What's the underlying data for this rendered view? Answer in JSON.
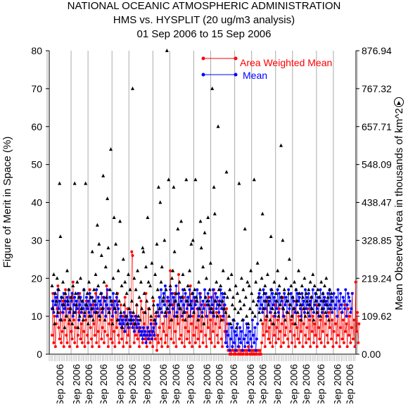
{
  "chart_data": {
    "type": "scatter",
    "title": [
      "NATIONAL OCEANIC ATMOSPHERIC ADMINISTRATION",
      "HMS vs. HYSPLIT (20 ug/m3 analysis)",
      "01 Sep 2006 to 15 Sep 2006"
    ],
    "ylabel_left": "Figure of Merit in Space (%)",
    "ylabel_right": "Mean Observed Area in thousands of km^2",
    "ylim_left": [
      0,
      80
    ],
    "yticks_left": [
      "0",
      "10",
      "20",
      "30",
      "40",
      "50",
      "60",
      "70",
      "80"
    ],
    "yticks_right": [
      "0.00",
      "109.62",
      "219.24",
      "328.85",
      "438.47",
      "548.09",
      "657.71",
      "767.32",
      "876.94"
    ],
    "xtick_label": "Sep 2006",
    "x_label_count": 21,
    "n_points": 360,
    "colors": {
      "awm": "#ff0000",
      "mean": "#0000ff",
      "area": "#000000"
    },
    "legend": {
      "position": "top-right",
      "entries": [
        "Area Weighted Mean",
        "Mean"
      ]
    },
    "triangle_marker": "▲",
    "series": [
      {
        "name": "Area Weighted Mean",
        "color": "#ff0000",
        "values": [
          5,
          16,
          3,
          10,
          2,
          8,
          12,
          18,
          7,
          4,
          11,
          3,
          6,
          14,
          2,
          9,
          17,
          5,
          3,
          12,
          8,
          2,
          15,
          6,
          4,
          19,
          9,
          3,
          7,
          13,
          2,
          5,
          11,
          16,
          4,
          8,
          3,
          12,
          6,
          2,
          9,
          14,
          5,
          3,
          10,
          17,
          7,
          4,
          2,
          13,
          8,
          5,
          16,
          3,
          11,
          6,
          2,
          9,
          12,
          4,
          7,
          15,
          3,
          6,
          10,
          18,
          5,
          2,
          8,
          12,
          4,
          9,
          3,
          14,
          6,
          2,
          11,
          7,
          16,
          5,
          3,
          8,
          13,
          4,
          10,
          2,
          6,
          15,
          9,
          3,
          12,
          5,
          7,
          2,
          11,
          27,
          26,
          8,
          3,
          10,
          5,
          13,
          4,
          7,
          2,
          9,
          14,
          6,
          3,
          11,
          8,
          4,
          16,
          2,
          7,
          12,
          5,
          3,
          9,
          6,
          2,
          14,
          8,
          4,
          10,
          1,
          5,
          3,
          7,
          12,
          4,
          2,
          8,
          6,
          10,
          3,
          5,
          14,
          2,
          11,
          7,
          22,
          4,
          9,
          13,
          3,
          16,
          6,
          2,
          10,
          8,
          21,
          4,
          12,
          5,
          3,
          9,
          15,
          2,
          7,
          11,
          4,
          13,
          6,
          3,
          18,
          8,
          2,
          10,
          5,
          14,
          3,
          7,
          12,
          4,
          9,
          2,
          16,
          6,
          11,
          3,
          8,
          13,
          5,
          2,
          10,
          7,
          15,
          4,
          9,
          3,
          12,
          6,
          17,
          2,
          8,
          11,
          5,
          3,
          14,
          7,
          10,
          4,
          2,
          9,
          13,
          6,
          3,
          12,
          8,
          1,
          1,
          0,
          1,
          0,
          2,
          1,
          0,
          1,
          0,
          1,
          1,
          0,
          2,
          0,
          1,
          0,
          1,
          0,
          1,
          1,
          0,
          1,
          0,
          2,
          1,
          0,
          1,
          0,
          1,
          0,
          1,
          0,
          1,
          0,
          1,
          1,
          0,
          1,
          0,
          3,
          8,
          5,
          12,
          2,
          9,
          6,
          14,
          4,
          7,
          3,
          11,
          8,
          2,
          10,
          5,
          13,
          3,
          7,
          9,
          4,
          12,
          6,
          2,
          8,
          15,
          3,
          10,
          5,
          7,
          11,
          4,
          2,
          13,
          6,
          9,
          3,
          8,
          12,
          5,
          2,
          14,
          7,
          4,
          10,
          3,
          9,
          6,
          13,
          2,
          8,
          11,
          5,
          3,
          7,
          12,
          4,
          9,
          2,
          15,
          6,
          10,
          3,
          8,
          5,
          13,
          2,
          11,
          7,
          4,
          9,
          3,
          12,
          6,
          14,
          2,
          8,
          10,
          5,
          3,
          11,
          7,
          13,
          4,
          9,
          2,
          6,
          12,
          8,
          3,
          10,
          5,
          14,
          2,
          7,
          11,
          4,
          9,
          3,
          13,
          6,
          8,
          2,
          12,
          5,
          10,
          3,
          7,
          16,
          4,
          9,
          2,
          19,
          6,
          11,
          3,
          8
        ]
      },
      {
        "name": "Mean",
        "color": "#0000ff",
        "values": [
          12,
          14,
          11,
          16,
          13,
          15,
          10,
          17,
          12,
          14,
          9,
          15,
          13,
          11,
          16,
          12,
          14,
          10,
          15,
          13,
          17,
          11,
          12,
          14,
          16,
          10,
          13,
          15,
          11,
          14,
          12,
          16,
          9,
          13,
          15,
          11,
          14,
          12,
          17,
          10,
          13,
          15,
          12,
          14,
          11,
          16,
          13,
          10,
          15,
          12,
          14,
          11,
          13,
          17,
          12,
          15,
          10,
          14,
          13,
          16,
          11,
          12,
          15,
          14,
          10,
          13,
          17,
          12,
          11,
          15,
          14,
          13,
          10,
          16,
          12,
          14,
          11,
          15,
          13,
          12,
          9,
          8,
          10,
          7,
          9,
          8,
          11,
          6,
          9,
          10,
          8,
          7,
          9,
          11,
          8,
          10,
          7,
          9,
          6,
          8,
          10,
          7,
          9,
          8,
          6,
          7,
          5,
          6,
          4,
          7,
          5,
          6,
          3,
          5,
          7,
          4,
          6,
          5,
          8,
          4,
          6,
          7,
          5,
          9,
          8,
          11,
          13,
          10,
          15,
          12,
          17,
          11,
          14,
          16,
          13,
          18,
          10,
          12,
          15,
          14,
          11,
          17,
          13,
          16,
          12,
          15,
          10,
          14,
          18,
          11,
          13,
          16,
          12,
          15,
          14,
          10,
          17,
          13,
          11,
          16,
          14,
          12,
          15,
          13,
          17,
          10,
          14,
          12,
          16,
          11,
          15,
          13,
          14,
          17,
          12,
          10,
          16,
          15,
          13,
          11,
          14,
          12,
          17,
          15,
          10,
          13,
          16,
          14,
          12,
          11,
          15,
          13,
          17,
          10,
          14,
          16,
          12,
          15,
          13,
          11,
          14,
          17,
          12,
          16,
          10,
          15,
          13,
          3,
          6,
          2,
          5,
          8,
          1,
          4,
          7,
          2,
          9,
          3,
          6,
          1,
          5,
          8,
          2,
          4,
          7,
          3,
          6,
          1,
          9,
          4,
          2,
          5,
          8,
          3,
          7,
          1,
          6,
          4,
          2,
          9,
          5,
          3,
          7,
          1,
          4,
          8,
          14,
          16,
          12,
          15,
          13,
          11,
          17,
          14,
          12,
          16,
          10,
          15,
          13,
          14,
          11,
          17,
          12,
          16,
          13,
          15,
          10,
          14,
          12,
          17,
          11,
          16,
          13,
          15,
          14,
          12,
          10,
          16,
          13,
          15,
          11,
          14,
          17,
          12,
          13,
          16,
          10,
          15,
          14,
          12,
          11,
          17,
          13,
          16,
          14,
          15,
          12,
          10,
          16,
          13,
          14,
          11,
          17,
          12,
          15,
          13,
          16,
          10,
          14,
          12,
          15,
          17,
          11,
          13,
          16,
          14,
          12,
          15,
          10,
          13,
          17,
          14,
          11,
          16,
          12,
          15,
          13,
          14,
          10,
          16,
          12,
          17,
          13,
          15,
          11,
          14,
          16,
          12,
          13,
          15,
          10,
          17,
          14,
          12,
          16,
          13,
          11,
          15,
          14,
          12,
          17,
          10,
          13,
          16,
          15,
          14,
          11,
          12,
          16
        ]
      },
      {
        "name": "Mean Observed Area",
        "color": "#000000",
        "values": [
          18,
          12,
          21,
          8,
          16,
          14,
          20,
          11,
          17,
          45,
          31,
          9,
          15,
          19,
          13,
          7,
          16,
          10,
          22,
          14,
          17,
          9,
          12,
          15,
          8,
          18,
          11,
          45,
          16,
          13,
          19,
          7,
          15,
          10,
          20,
          12,
          14,
          9,
          17,
          11,
          45,
          13,
          16,
          8,
          19,
          10,
          15,
          12,
          27,
          9,
          17,
          14,
          21,
          11,
          34,
          18,
          29,
          10,
          16,
          26,
          12,
          47,
          19,
          9,
          23,
          15,
          41,
          28,
          11,
          17,
          54,
          14,
          8,
          20,
          36,
          12,
          29,
          16,
          9,
          22,
          14,
          35,
          11,
          18,
          7,
          25,
          13,
          19,
          10,
          16,
          8,
          21,
          12,
          17,
          9,
          14,
          70,
          11,
          20,
          8,
          17,
          13,
          22,
          10,
          15,
          9,
          19,
          12,
          28,
          27,
          16,
          11,
          23,
          14,
          36,
          19,
          12,
          18,
          10,
          24,
          15,
          13,
          9,
          21,
          11,
          29,
          17,
          44,
          12,
          40,
          19,
          23,
          14,
          15,
          30,
          11,
          17,
          80,
          12,
          46,
          13,
          18,
          9,
          20,
          22,
          44,
          27,
          14,
          16,
          10,
          33,
          13,
          19,
          12,
          35,
          15,
          21,
          11,
          17,
          9,
          46,
          14,
          18,
          10,
          22,
          13,
          29,
          16,
          30,
          11,
          17,
          46,
          15,
          14,
          9,
          19,
          12,
          35,
          28,
          10,
          23,
          8,
          32,
          15,
          20,
          14,
          36,
          13,
          17,
          24,
          12,
          70,
          11,
          44,
          37,
          14,
          19,
          10,
          60,
          17,
          13,
          18,
          9,
          14,
          22,
          12,
          16,
          11,
          48,
          15,
          20,
          10,
          17,
          8,
          21,
          13,
          15,
          9,
          12,
          18,
          7,
          16,
          11,
          45,
          14,
          12,
          20,
          9,
          17,
          13,
          33,
          15,
          10,
          19,
          8,
          18,
          12,
          22,
          16,
          11,
          14,
          46,
          10,
          19,
          13,
          24,
          15,
          11,
          17,
          9,
          20,
          37,
          12,
          16,
          18,
          14,
          10,
          21,
          13,
          15,
          9,
          31,
          17,
          12,
          8,
          19,
          11,
          16,
          14,
          22,
          10,
          18,
          13,
          55,
          15,
          30,
          12,
          17,
          9,
          20,
          14,
          11,
          16,
          25,
          13,
          18,
          10,
          15,
          12,
          19,
          8,
          17,
          14,
          11,
          22,
          16,
          13,
          9,
          18,
          15,
          12,
          20,
          10,
          16,
          14,
          11,
          17,
          13,
          19,
          15,
          12,
          21,
          9,
          18,
          14,
          16,
          11,
          17,
          13,
          15,
          10,
          19,
          12,
          16,
          14,
          18,
          11,
          20,
          13,
          15,
          9,
          17,
          12,
          16,
          14
        ]
      }
    ]
  }
}
